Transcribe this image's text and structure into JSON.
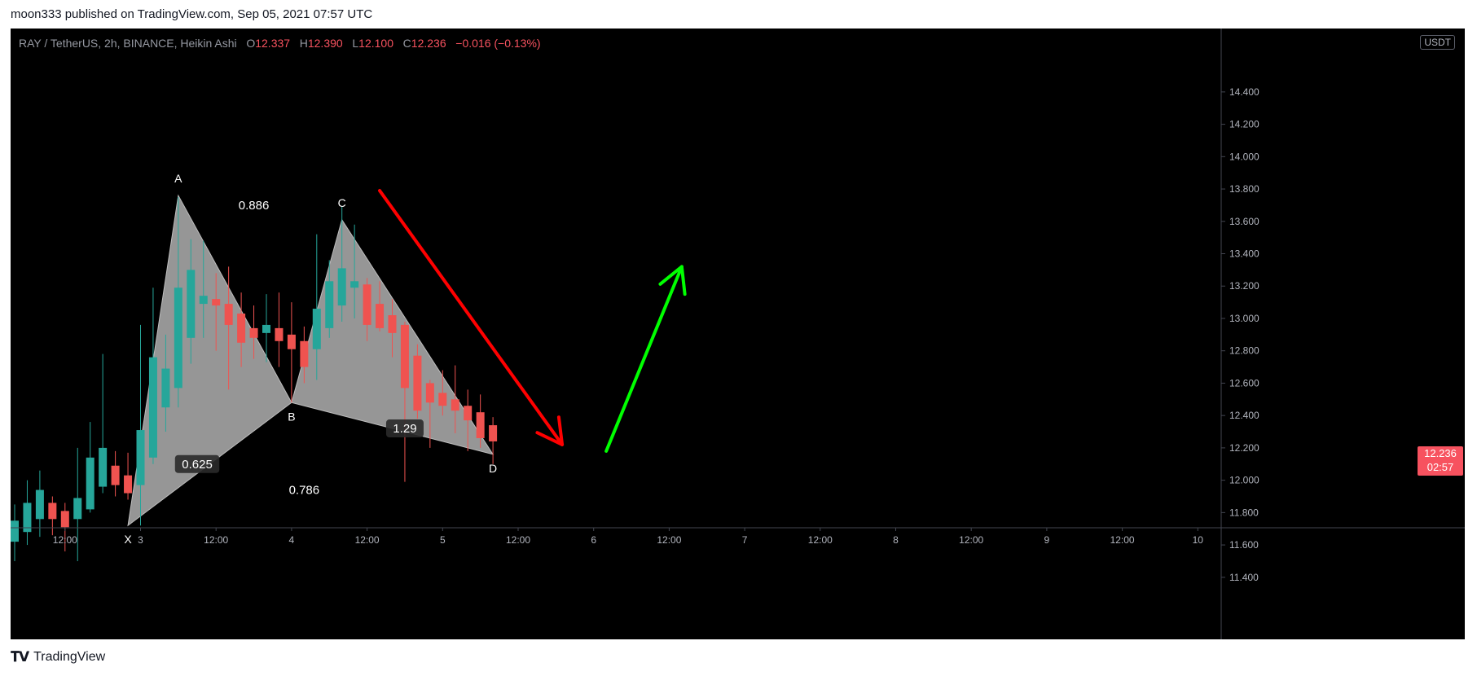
{
  "header": {
    "published": "moon333 published on TradingView.com, Sep 05, 2021 07:57 UTC"
  },
  "legend": {
    "symbol": "RAY / TetherUS, 2h, BINANCE, Heikin Ashi",
    "o_label": "O",
    "o_value": "12.337",
    "h_label": "H",
    "h_value": "12.390",
    "l_label": "L",
    "l_value": "12.100",
    "c_label": "C",
    "c_value": "12.236",
    "change": "−0.016 (−0.13%)"
  },
  "currency": "USDT",
  "last_price": {
    "value": "12.236",
    "countdown": "02:57"
  },
  "footer": {
    "logo_text": "TradingView"
  },
  "colors": {
    "up": "#26a69a",
    "down": "#ef5350",
    "pattern_fill": "#9e9e9e",
    "arrow_down": "#ff0000",
    "arrow_up": "#00ff00"
  },
  "chart_data": {
    "type": "candlestick",
    "ylim": [
      11.35,
      14.52
    ],
    "y_ticks": [
      "14.400",
      "14.200",
      "14.000",
      "13.800",
      "13.600",
      "13.400",
      "13.200",
      "13.000",
      "12.800",
      "12.600",
      "12.400",
      "12.200",
      "12.000",
      "11.800",
      "11.600",
      "11.400"
    ],
    "x_ticks": [
      {
        "label": "12:00",
        "t": -6
      },
      {
        "label": "3",
        "t": 0
      },
      {
        "label": "12:00",
        "t": 6
      },
      {
        "label": "4",
        "t": 12
      },
      {
        "label": "12:00",
        "t": 18
      },
      {
        "label": "5",
        "t": 24
      },
      {
        "label": "12:00",
        "t": 30
      },
      {
        "label": "6",
        "t": 36
      },
      {
        "label": "12:00",
        "t": 42
      },
      {
        "label": "7",
        "t": 48
      },
      {
        "label": "12:00",
        "t": 54
      },
      {
        "label": "8",
        "t": 60
      },
      {
        "label": "12:00",
        "t": 66
      },
      {
        "label": "9",
        "t": 72
      },
      {
        "label": "12:00",
        "t": 78
      },
      {
        "label": "10",
        "t": 84
      }
    ],
    "candles": [
      {
        "t": -10,
        "o": 11.62,
        "h": 11.85,
        "l": 11.5,
        "c": 11.75
      },
      {
        "t": -9,
        "o": 11.68,
        "h": 12.0,
        "l": 11.6,
        "c": 11.86
      },
      {
        "t": -8,
        "o": 11.76,
        "h": 12.06,
        "l": 11.65,
        "c": 11.94
      },
      {
        "t": -7,
        "o": 11.86,
        "h": 11.9,
        "l": 11.66,
        "c": 11.76
      },
      {
        "t": -6,
        "o": 11.81,
        "h": 11.86,
        "l": 11.56,
        "c": 11.71
      },
      {
        "t": -5,
        "o": 11.76,
        "h": 12.2,
        "l": 11.5,
        "c": 11.89
      },
      {
        "t": -4,
        "o": 11.82,
        "h": 12.36,
        "l": 11.8,
        "c": 12.14
      },
      {
        "t": -3,
        "o": 11.96,
        "h": 12.78,
        "l": 11.92,
        "c": 12.2
      },
      {
        "t": -2,
        "o": 12.09,
        "h": 12.18,
        "l": 11.9,
        "c": 11.97
      },
      {
        "t": -1,
        "o": 12.03,
        "h": 12.17,
        "l": 11.88,
        "c": 11.92
      },
      {
        "t": 0,
        "o": 11.97,
        "h": 12.96,
        "l": 11.72,
        "c": 12.31
      },
      {
        "t": 1,
        "o": 12.14,
        "h": 13.19,
        "l": 12.1,
        "c": 12.76
      },
      {
        "t": 2,
        "o": 12.45,
        "h": 12.9,
        "l": 12.3,
        "c": 12.69
      },
      {
        "t": 3,
        "o": 12.57,
        "h": 13.75,
        "l": 12.45,
        "c": 13.19
      },
      {
        "t": 4,
        "o": 12.88,
        "h": 13.49,
        "l": 12.72,
        "c": 13.3
      },
      {
        "t": 5,
        "o": 13.09,
        "h": 13.48,
        "l": 12.88,
        "c": 13.14
      },
      {
        "t": 6,
        "o": 13.12,
        "h": 13.28,
        "l": 12.8,
        "c": 13.08
      },
      {
        "t": 7,
        "o": 13.09,
        "h": 13.32,
        "l": 12.56,
        "c": 12.96
      },
      {
        "t": 8,
        "o": 13.03,
        "h": 13.16,
        "l": 12.7,
        "c": 12.85
      },
      {
        "t": 9,
        "o": 12.94,
        "h": 13.08,
        "l": 12.75,
        "c": 12.88
      },
      {
        "t": 10,
        "o": 12.91,
        "h": 13.15,
        "l": 12.73,
        "c": 12.96
      },
      {
        "t": 11,
        "o": 12.94,
        "h": 13.16,
        "l": 12.7,
        "c": 12.86
      },
      {
        "t": 12,
        "o": 12.9,
        "h": 13.1,
        "l": 12.48,
        "c": 12.81
      },
      {
        "t": 13,
        "o": 12.86,
        "h": 12.95,
        "l": 12.6,
        "c": 12.7
      },
      {
        "t": 14,
        "o": 12.81,
        "h": 13.52,
        "l": 12.62,
        "c": 13.06
      },
      {
        "t": 15,
        "o": 12.94,
        "h": 13.36,
        "l": 12.88,
        "c": 13.23
      },
      {
        "t": 16,
        "o": 13.08,
        "h": 13.69,
        "l": 12.98,
        "c": 13.31
      },
      {
        "t": 17,
        "o": 13.19,
        "h": 13.58,
        "l": 13.0,
        "c": 13.23
      },
      {
        "t": 18,
        "o": 13.21,
        "h": 13.25,
        "l": 12.86,
        "c": 12.96
      },
      {
        "t": 19,
        "o": 13.09,
        "h": 13.23,
        "l": 12.92,
        "c": 12.94
      },
      {
        "t": 20,
        "o": 13.02,
        "h": 13.12,
        "l": 12.76,
        "c": 12.91
      },
      {
        "t": 21,
        "o": 12.96,
        "h": 12.98,
        "l": 11.99,
        "c": 12.57
      },
      {
        "t": 22,
        "o": 12.77,
        "h": 12.84,
        "l": 12.38,
        "c": 12.43
      },
      {
        "t": 23,
        "o": 12.6,
        "h": 12.62,
        "l": 12.2,
        "c": 12.48
      },
      {
        "t": 24,
        "o": 12.54,
        "h": 12.68,
        "l": 12.4,
        "c": 12.46
      },
      {
        "t": 25,
        "o": 12.5,
        "h": 12.71,
        "l": 12.29,
        "c": 12.43
      },
      {
        "t": 26,
        "o": 12.46,
        "h": 12.56,
        "l": 12.18,
        "c": 12.37
      },
      {
        "t": 27,
        "o": 12.42,
        "h": 12.53,
        "l": 12.2,
        "c": 12.26
      },
      {
        "t": 28,
        "o": 12.34,
        "h": 12.39,
        "l": 12.1,
        "c": 12.24
      }
    ],
    "pattern": {
      "points": [
        {
          "name": "X",
          "t": -1,
          "p": 11.72
        },
        {
          "name": "A",
          "t": 3,
          "p": 13.76
        },
        {
          "name": "B",
          "t": 12,
          "p": 12.48
        },
        {
          "name": "C",
          "t": 16,
          "p": 13.61
        },
        {
          "name": "D",
          "t": 28,
          "p": 12.16
        }
      ],
      "ratios": [
        {
          "text": "0.886",
          "t": 9,
          "p": 13.7,
          "boxed": false
        },
        {
          "text": "0.625",
          "t": 4.5,
          "p": 12.1,
          "boxed": true
        },
        {
          "text": "0.786",
          "t": 13,
          "p": 11.94,
          "boxed": false
        },
        {
          "text": "1.29",
          "t": 21,
          "p": 12.32,
          "boxed": true
        }
      ]
    },
    "arrows": [
      {
        "name": "down",
        "from": {
          "t": 19,
          "p": 13.79
        },
        "to": {
          "t": 33.5,
          "p": 12.22
        },
        "color": "#ff0000"
      },
      {
        "name": "up",
        "from": {
          "t": 37,
          "p": 12.18
        },
        "to": {
          "t": 43,
          "p": 13.32
        },
        "color": "#00ff00"
      }
    ]
  }
}
